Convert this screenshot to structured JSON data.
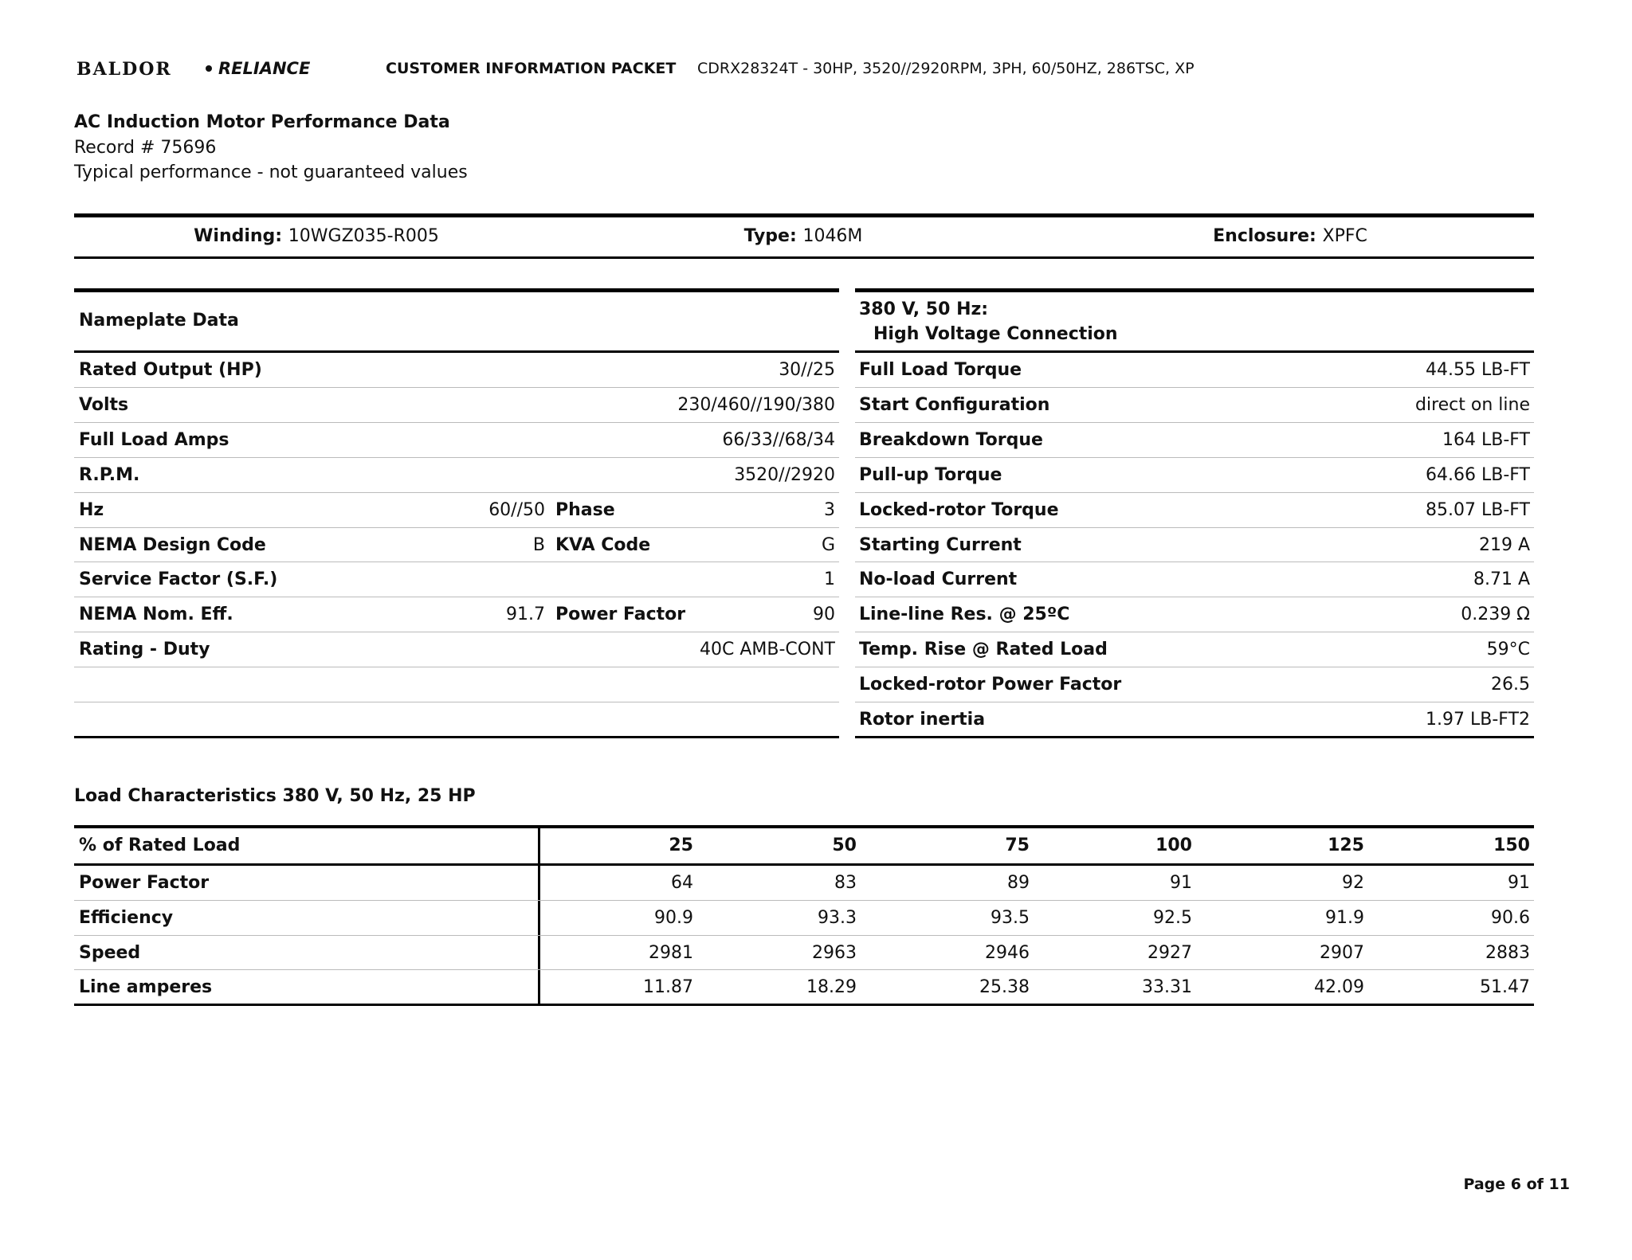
{
  "header": {
    "logo_left": "BALDOR",
    "logo_right": "RELIANCE",
    "packet_title": "CUSTOMER INFORMATION PACKET",
    "model": "CDRX28324T - 30HP, 3520//2920RPM, 3PH, 60/50HZ, 286TSC, XP"
  },
  "intro": {
    "title": "AC Induction Motor Performance Data",
    "record": "Record # 75696",
    "note": "Typical performance - not guaranteed values"
  },
  "summary": [
    {
      "label": "Winding:",
      "value": "10WGZ035-R005"
    },
    {
      "label": "Type:",
      "value": "1046M"
    },
    {
      "label": "Enclosure:",
      "value": "XPFC"
    }
  ],
  "nameplate": {
    "title": "Nameplate Data",
    "rows": [
      [
        "Rated Output (HP)",
        "30//25"
      ],
      [
        "Volts",
        "230/460//190/380"
      ],
      [
        "Full Load Amps",
        "66/33//68/34"
      ],
      [
        "R.P.M.",
        "3520//2920"
      ],
      [
        "Hz",
        "60//50",
        "Phase",
        "3"
      ],
      [
        "NEMA Design Code",
        "B",
        "KVA Code",
        "G"
      ],
      [
        "Service Factor (S.F.)",
        "1"
      ],
      [
        "NEMA Nom. Eff.",
        "91.7",
        "Power Factor",
        "90"
      ],
      [
        "Rating - Duty",
        "40C AMB-CONT"
      ]
    ]
  },
  "connection": {
    "title": "380 V, 50 Hz:",
    "subtitle": "High Voltage Connection",
    "rows": [
      [
        "Full Load Torque",
        "44.55 LB-FT"
      ],
      [
        "Start Configuration",
        "direct on line"
      ],
      [
        "Breakdown Torque",
        "164 LB-FT"
      ],
      [
        "Pull-up Torque",
        "64.66 LB-FT"
      ],
      [
        "Locked-rotor Torque",
        "85.07 LB-FT"
      ],
      [
        "Starting Current",
        "219 A"
      ],
      [
        "No-load Current",
        "8.71 A"
      ],
      [
        "Line-line Res. @ 25ºC",
        "0.239 Ω"
      ],
      [
        "Temp. Rise @ Rated Load",
        "59°C"
      ],
      [
        "Locked-rotor Power Factor",
        "26.5"
      ],
      [
        "Rotor inertia",
        "1.97 LB-FT2"
      ]
    ]
  },
  "load": {
    "title": "Load Characteristics 380 V, 50 Hz, 25 HP",
    "header_label": "% of Rated Load",
    "columns": [
      25,
      50,
      75,
      100,
      125,
      150
    ],
    "rows": [
      {
        "label": "Power Factor",
        "values": [
          64,
          83,
          89,
          91,
          92,
          91
        ]
      },
      {
        "label": "Efficiency",
        "values": [
          90.9,
          93.3,
          93.5,
          92.5,
          91.9,
          90.6
        ]
      },
      {
        "label": "Speed",
        "values": [
          2981,
          2963,
          2946,
          2927,
          2907,
          2883
        ]
      },
      {
        "label": "Line amperes",
        "values": [
          11.87,
          18.29,
          25.38,
          33.31,
          42.09,
          51.47
        ]
      }
    ]
  },
  "footer": {
    "page": "Page 6 of 11"
  }
}
